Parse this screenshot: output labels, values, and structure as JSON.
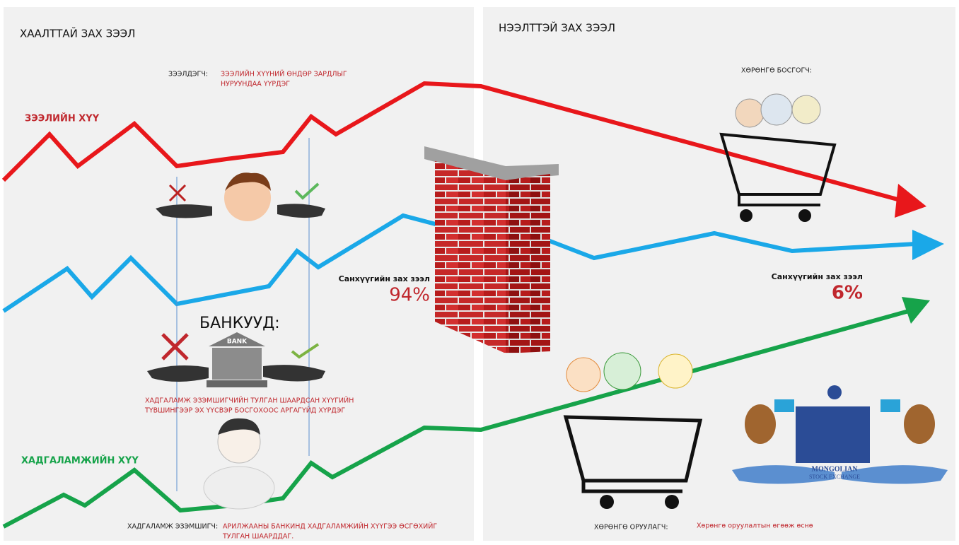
{
  "left": {
    "title": "ХААЛТТАЙ ЗАХ ЗЭЭЛ",
    "borrower_label": "ЗЭЭЛДЭГЧ:",
    "borrower_desc": [
      "ЗЭЭЛИЙН ХҮҮНИЙ ӨНДӨР ЗАРДЛЫГ",
      "НУРУУНДАА ҮҮРДЭГ"
    ],
    "loan_rate": "ЗЭЭЛИЙН ХҮҮ",
    "banks": "БАНКУУД:",
    "bank_sign": "BANK",
    "bank_desc": [
      "ХАДГАЛАМЖ ЭЗЭМШИГЧИЙН ТУЛГАН ШААРДСАН ХҮҮГИЙН",
      "ТҮВШИНГЭЭР ЭХ ҮҮСВЭР БОСГОХООС АРГАГҮЙД ХҮРДЭГ"
    ],
    "deposit_rate": "ХАДГАЛАМЖИЙН ХҮҮ",
    "depositor_label": "ХАДГАЛАМЖ ЭЗЭМШИГЧ:",
    "depositor_desc": [
      "АРИЛЖААНЫ БАНКИНД ХАДГАЛАМЖИЙН ХҮҮГЭЭ ӨСГӨХИЙГ",
      "ТУЛГАН ШААРДДАГ."
    ],
    "market_label": "Санхүүгийн зах зээл",
    "market_share": "94%"
  },
  "right": {
    "title": "НЭЭЛТТЭЙ ЗАХ ЗЭЭЛ",
    "issuers": "ХӨРӨНГӨ БОСГОГЧ:",
    "market_label": "Санхүүгийн зах зээл",
    "market_share": "6%",
    "investors": "ХӨРӨНГӨ ОРУУЛАГЧ:",
    "investor_desc": "Хөрөнгө оруулалтын өгөөж өснө",
    "exchange": [
      "MONGOLIAN",
      "STOCK EXCHANGE"
    ]
  }
}
